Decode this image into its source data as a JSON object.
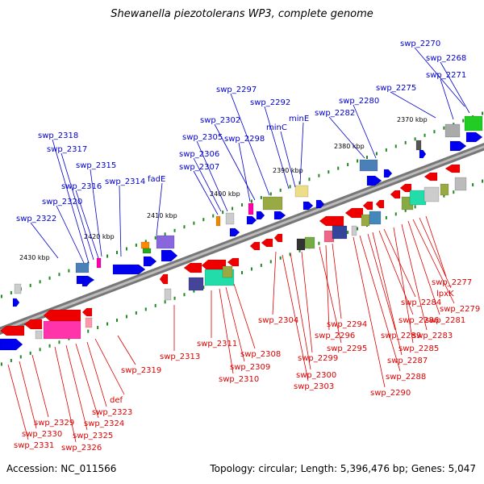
{
  "title": "Shewanella piezotolerans WP3, complete genome",
  "footer": {
    "accession": "Accession: NC_011566",
    "topology": "Topology: circular; Length: 5,396,476 bp; Genes: 5,047"
  },
  "colors": {
    "backbone": "#888888",
    "forward_label": "#0000cc",
    "reverse_label": "#dd0000",
    "tick": "#228822"
  },
  "kbp_labels": [
    "2370 kbp",
    "2380 kbp",
    "2390 kbp",
    "2400 kbp",
    "2410 kbp",
    "2420 kbp",
    "2430 kbp"
  ],
  "forward_gene_labels": [
    "swp_2270",
    "swp_2268",
    "swp_2271",
    "swp_2275",
    "swp_2280",
    "swp_2282",
    "minE",
    "minC",
    "swp_2292",
    "swp_2297",
    "swp_2302",
    "swp_2298",
    "swp_2305",
    "swp_2306",
    "swp_2307",
    "fadE",
    "swp_2314",
    "swp_2315",
    "swp_2316",
    "swp_2317",
    "swp_2318",
    "swp_2320",
    "swp_2322"
  ],
  "reverse_gene_labels": [
    "swp_2277",
    "lpxK",
    "swp_2279",
    "swp_2281",
    "swp_2284",
    "swp_2283",
    "swp_2286",
    "swp_2285",
    "swp_2287",
    "swp_2289",
    "swp_2288",
    "swp_2290",
    "swp_2294",
    "swp_2296",
    "swp_2295",
    "swp_2304",
    "swp_2299",
    "swp_2300",
    "swp_2303",
    "swp_2308",
    "swp_2309",
    "swp_2310",
    "swp_2311",
    "swp_2313",
    "swp_2319",
    "def",
    "swp_2323",
    "swp_2324",
    "swp_2325",
    "swp_2326",
    "swp_2329",
    "swp_2330",
    "swp_2331"
  ]
}
